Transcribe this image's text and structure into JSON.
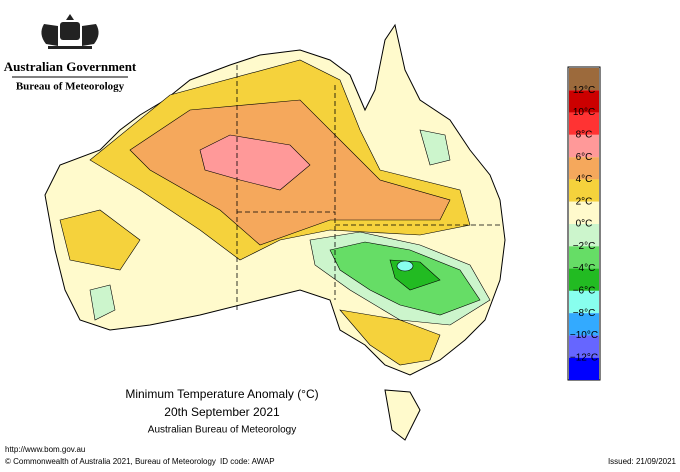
{
  "header": {
    "government": "Australian Government",
    "agency": "Bureau of Meteorology"
  },
  "map": {
    "title": "Minimum Temperature Anomaly (°C)",
    "date": "20th September 2021",
    "source": "Australian Bureau of Meteorology"
  },
  "legend": {
    "labels": [
      "12°C",
      "10°C",
      "8°C",
      "6°C",
      "4°C",
      "2°C",
      "0°C",
      "−2°C",
      "−4°C",
      "−6°C",
      "−8°C",
      "−10°C",
      "−12°C"
    ],
    "colors": [
      "#9c6a3c",
      "#cc0000",
      "#ff3333",
      "#ff9999",
      "#f5a85c",
      "#f5d23c",
      "#fffacc",
      "#ccf5cc",
      "#66dd66",
      "#22bb22",
      "#88ffee",
      "#33aaff",
      "#6666ff",
      "#0000ff"
    ]
  },
  "footer": {
    "url": "http://www.bom.gov.au",
    "copyright": "© Commonwealth of Australia 2021, Bureau of Meteorology",
    "id_code": "ID code: AWAP",
    "issued": "Issued: 21/09/2021"
  }
}
